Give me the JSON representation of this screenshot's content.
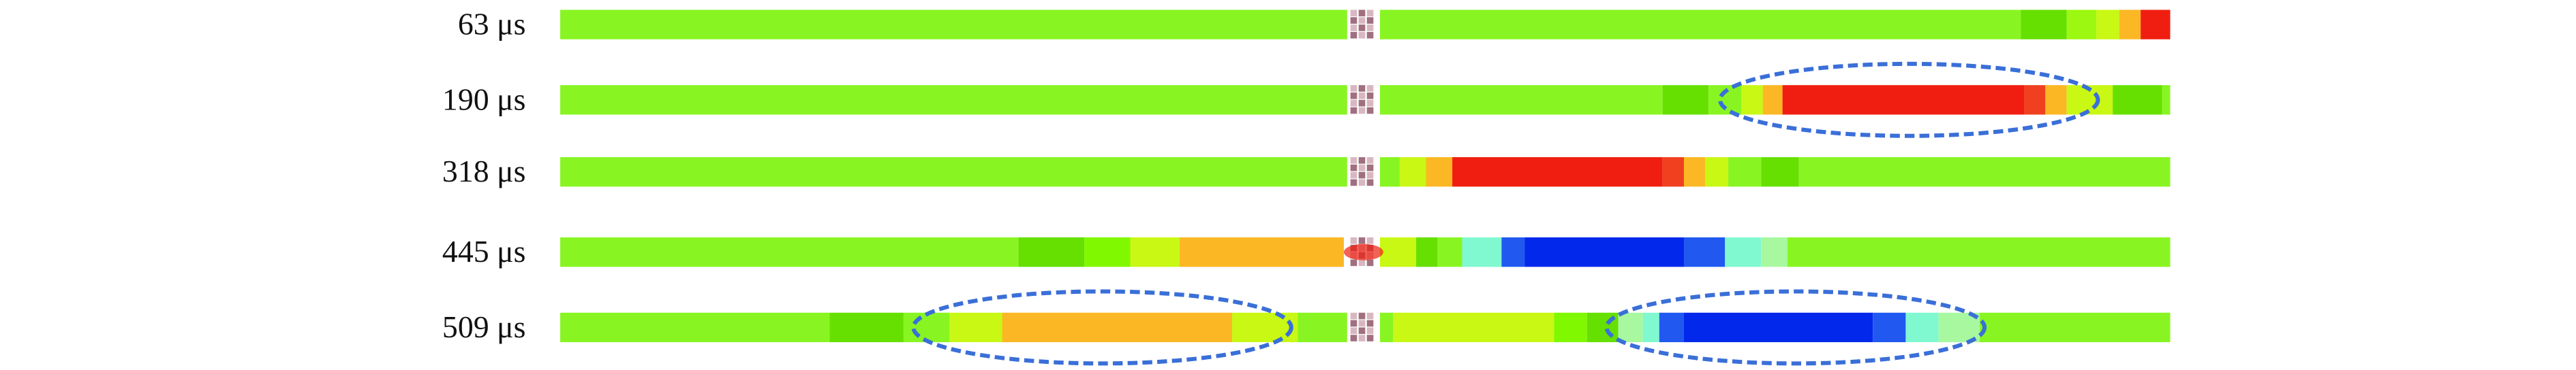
{
  "rows": [
    {
      "label": "63 μs"
    },
    {
      "label": "190 μs"
    },
    {
      "label": "318 μs"
    },
    {
      "label": "445 μs"
    },
    {
      "label": "509 μs"
    }
  ],
  "colors": {
    "green": "#88f522",
    "dark_green": "#66e000",
    "yellow_green": "#c8f814",
    "orange": "#fbb824",
    "red": "#f01e10",
    "cyan": "#80f8d0",
    "blue": "#0228ec",
    "mid_blue": "#2058f0",
    "ellipse": "#3a6fd8",
    "gap": "#a07080"
  }
}
